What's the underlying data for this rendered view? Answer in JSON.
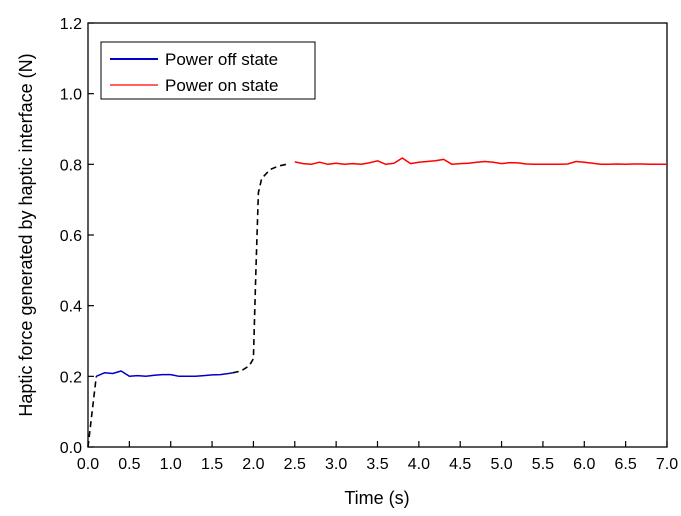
{
  "chart_data": {
    "type": "line",
    "xlabel": "Time (s)",
    "ylabel": "Haptic force generated by haptic interface (N)",
    "xlim": [
      0,
      7
    ],
    "ylim": [
      0,
      1.2
    ],
    "x_ticks": [
      0,
      0.5,
      1,
      1.5,
      2,
      2.5,
      3,
      3.5,
      4,
      4.5,
      5,
      5.5,
      6,
      6.5,
      7
    ],
    "x_tick_labels": [
      "0.0",
      "0.5",
      "1.0",
      "1.5",
      "2.0",
      "2.5",
      "3.0",
      "3.5",
      "4.0",
      "4.5",
      "5.0",
      "5.5",
      "6.0",
      "6.5",
      "7.0"
    ],
    "y_ticks": [
      0,
      0.2,
      0.4,
      0.6,
      0.8,
      1.0,
      1.2
    ],
    "y_tick_labels": [
      "0.0",
      "0.2",
      "0.4",
      "0.6",
      "0.8",
      "1.0",
      "1.2"
    ],
    "grid": false,
    "legend_position": "top-left",
    "series": [
      {
        "name": "Power off state",
        "color": "#0000cc",
        "style": "solid",
        "x": [
          0.1,
          0.2,
          0.3,
          0.4,
          0.5,
          0.6,
          0.7,
          0.8,
          0.9,
          1.0,
          1.1,
          1.2,
          1.3,
          1.4,
          1.5,
          1.6,
          1.7,
          1.75
        ],
        "y": [
          0.2,
          0.21,
          0.208,
          0.215,
          0.2,
          0.202,
          0.2,
          0.203,
          0.205,
          0.205,
          0.2,
          0.2,
          0.2,
          0.202,
          0.204,
          0.205,
          0.208,
          0.21
        ]
      },
      {
        "name": "Power on state",
        "color": "#ff0000",
        "style": "solid",
        "x": [
          2.5,
          2.6,
          2.7,
          2.8,
          2.9,
          3.0,
          3.1,
          3.2,
          3.3,
          3.4,
          3.5,
          3.6,
          3.7,
          3.8,
          3.9,
          4.0,
          4.1,
          4.2,
          4.3,
          4.4,
          4.5,
          4.6,
          4.7,
          4.8,
          4.9,
          5.0,
          5.1,
          5.2,
          5.3,
          5.4,
          5.5,
          5.6,
          5.7,
          5.8,
          5.9,
          6.0,
          6.1,
          6.2,
          6.3,
          6.4,
          6.5,
          6.6,
          6.7,
          6.8,
          6.9,
          7.0
        ],
        "y": [
          0.807,
          0.802,
          0.8,
          0.806,
          0.8,
          0.803,
          0.8,
          0.802,
          0.8,
          0.804,
          0.81,
          0.8,
          0.803,
          0.818,
          0.802,
          0.806,
          0.808,
          0.81,
          0.814,
          0.8,
          0.802,
          0.803,
          0.806,
          0.808,
          0.806,
          0.802,
          0.805,
          0.804,
          0.801,
          0.8,
          0.8,
          0.8,
          0.8,
          0.801,
          0.808,
          0.806,
          0.803,
          0.8,
          0.8,
          0.801,
          0.8,
          0.801,
          0.801,
          0.8,
          0.8,
          0.8
        ]
      },
      {
        "color": "#000000",
        "style": "dashed",
        "x": [
          0.0,
          0.1
        ],
        "y": [
          0.0,
          0.2
        ]
      },
      {
        "color": "#000000",
        "style": "dashed",
        "x": [
          1.75,
          1.85,
          1.95,
          2.0,
          2.03,
          2.06,
          2.1,
          2.2,
          2.3,
          2.4
        ],
        "y": [
          0.21,
          0.215,
          0.23,
          0.25,
          0.5,
          0.72,
          0.76,
          0.785,
          0.795,
          0.8
        ]
      }
    ]
  }
}
